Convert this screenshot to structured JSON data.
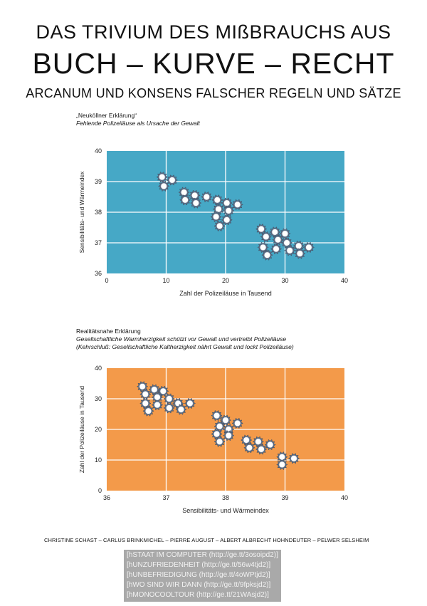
{
  "header": {
    "line1": "DAS TRIVIUM DES MIßBRAUCHS AUS",
    "line2": "BUCH – KURVE – RECHT",
    "line3": "ARCANUM UND KONSENS FALSCHER REGELN UND SÄTZE"
  },
  "chart1_caption": {
    "line1": "„Neuköllner Erklärung“",
    "line2": "Fehlende Polizeiläuse als Ursache der Gewalt"
  },
  "chart2_caption": {
    "line1": "Realitätsnahe Erklärung",
    "line2": "Gesellschaftliche Warmherzigkeit schützt vor Gewalt und vertreibt Polizeiläuse",
    "line3": "(Kehrschluß: Gesellschaftliche Kaltherzigkeit nährt Gewalt und lockt Polizeiläuse)"
  },
  "chart_data": [
    {
      "type": "scatter",
      "title": "",
      "xlabel": "Zahl der Polizeiläuse in Tausend",
      "ylabel": "Sensibilitäts- und Wärmeindex",
      "xlim": [
        0,
        40
      ],
      "ylim": [
        36,
        40
      ],
      "xticks": [
        "0",
        "10",
        "20",
        "30",
        "40"
      ],
      "yticks": [
        "36",
        "37",
        "38",
        "39",
        "40"
      ],
      "grid": true,
      "background": "#46a8c6",
      "marker": "gear",
      "points": [
        {
          "x": 9.3,
          "y": 39.15
        },
        {
          "x": 11.0,
          "y": 39.05
        },
        {
          "x": 9.6,
          "y": 38.85
        },
        {
          "x": 13.0,
          "y": 38.65
        },
        {
          "x": 14.8,
          "y": 38.55
        },
        {
          "x": 16.8,
          "y": 38.5
        },
        {
          "x": 13.2,
          "y": 38.4
        },
        {
          "x": 15.0,
          "y": 38.3
        },
        {
          "x": 18.6,
          "y": 38.4
        },
        {
          "x": 20.2,
          "y": 38.3
        },
        {
          "x": 22.0,
          "y": 38.25
        },
        {
          "x": 18.8,
          "y": 38.1
        },
        {
          "x": 20.5,
          "y": 38.05
        },
        {
          "x": 18.4,
          "y": 37.85
        },
        {
          "x": 20.2,
          "y": 37.75
        },
        {
          "x": 19.0,
          "y": 37.55
        },
        {
          "x": 26.0,
          "y": 37.45
        },
        {
          "x": 28.3,
          "y": 37.35
        },
        {
          "x": 30.0,
          "y": 37.3
        },
        {
          "x": 26.8,
          "y": 37.2
        },
        {
          "x": 28.8,
          "y": 37.1
        },
        {
          "x": 30.3,
          "y": 37.0
        },
        {
          "x": 32.3,
          "y": 36.9
        },
        {
          "x": 34.0,
          "y": 36.85
        },
        {
          "x": 26.3,
          "y": 36.85
        },
        {
          "x": 28.5,
          "y": 36.8
        },
        {
          "x": 30.8,
          "y": 36.75
        },
        {
          "x": 32.5,
          "y": 36.65
        },
        {
          "x": 27.0,
          "y": 36.6
        }
      ]
    },
    {
      "type": "scatter",
      "title": "",
      "xlabel": "Sensibilitäts- und Wärmeindex",
      "ylabel": "Zahl der Polizeiläuse in Tausend",
      "xlim": [
        36,
        40
      ],
      "ylim": [
        0,
        40
      ],
      "xticks": [
        "36",
        "37",
        "38",
        "39",
        "40"
      ],
      "yticks": [
        "0",
        "10",
        "20",
        "30",
        "40"
      ],
      "grid": true,
      "background": "#f39a4a",
      "marker": "gear",
      "points": [
        {
          "x": 36.6,
          "y": 34.0
        },
        {
          "x": 36.8,
          "y": 33.0
        },
        {
          "x": 36.95,
          "y": 32.5
        },
        {
          "x": 36.65,
          "y": 31.5
        },
        {
          "x": 36.85,
          "y": 30.5
        },
        {
          "x": 37.05,
          "y": 30.0
        },
        {
          "x": 36.65,
          "y": 28.5
        },
        {
          "x": 36.85,
          "y": 28.0
        },
        {
          "x": 37.05,
          "y": 27.0
        },
        {
          "x": 37.2,
          "y": 28.5
        },
        {
          "x": 37.4,
          "y": 28.5
        },
        {
          "x": 37.25,
          "y": 26.5
        },
        {
          "x": 36.7,
          "y": 26.0
        },
        {
          "x": 37.85,
          "y": 24.5
        },
        {
          "x": 38.0,
          "y": 23.0
        },
        {
          "x": 38.2,
          "y": 22.0
        },
        {
          "x": 37.9,
          "y": 21.0
        },
        {
          "x": 38.05,
          "y": 20.0
        },
        {
          "x": 37.85,
          "y": 18.5
        },
        {
          "x": 38.05,
          "y": 18.0
        },
        {
          "x": 37.9,
          "y": 16.0
        },
        {
          "x": 38.35,
          "y": 16.5
        },
        {
          "x": 38.55,
          "y": 16.0
        },
        {
          "x": 38.75,
          "y": 15.0
        },
        {
          "x": 38.4,
          "y": 14.0
        },
        {
          "x": 38.6,
          "y": 13.5
        },
        {
          "x": 38.95,
          "y": 11.0
        },
        {
          "x": 39.15,
          "y": 10.5
        },
        {
          "x": 38.95,
          "y": 8.5
        }
      ]
    }
  ],
  "authors": "CHRISTINE SCHAST – CARLUS BRINKMICHEL – PIERRE AUGUST – ALBERT ALBRECHT HOHNDEUTER – PELWER SELSHEIM",
  "links": [
    "[hSTAAT IM COMPUTER (http://ge.tt/3osoipd2)]",
    "[hUNZUFRIEDENHEIT (http://ge.tt/56w4tjd2)]",
    "[hUNBEFRIEDIGUNG (http://ge.tt/4oWPtjd2)]",
    "[hWO SIND WIR DANN (http://ge.tt/9fpksjd2)]",
    "[hMONOCOOLTOUR (http://ge.tt/21WAsjd2)]"
  ]
}
